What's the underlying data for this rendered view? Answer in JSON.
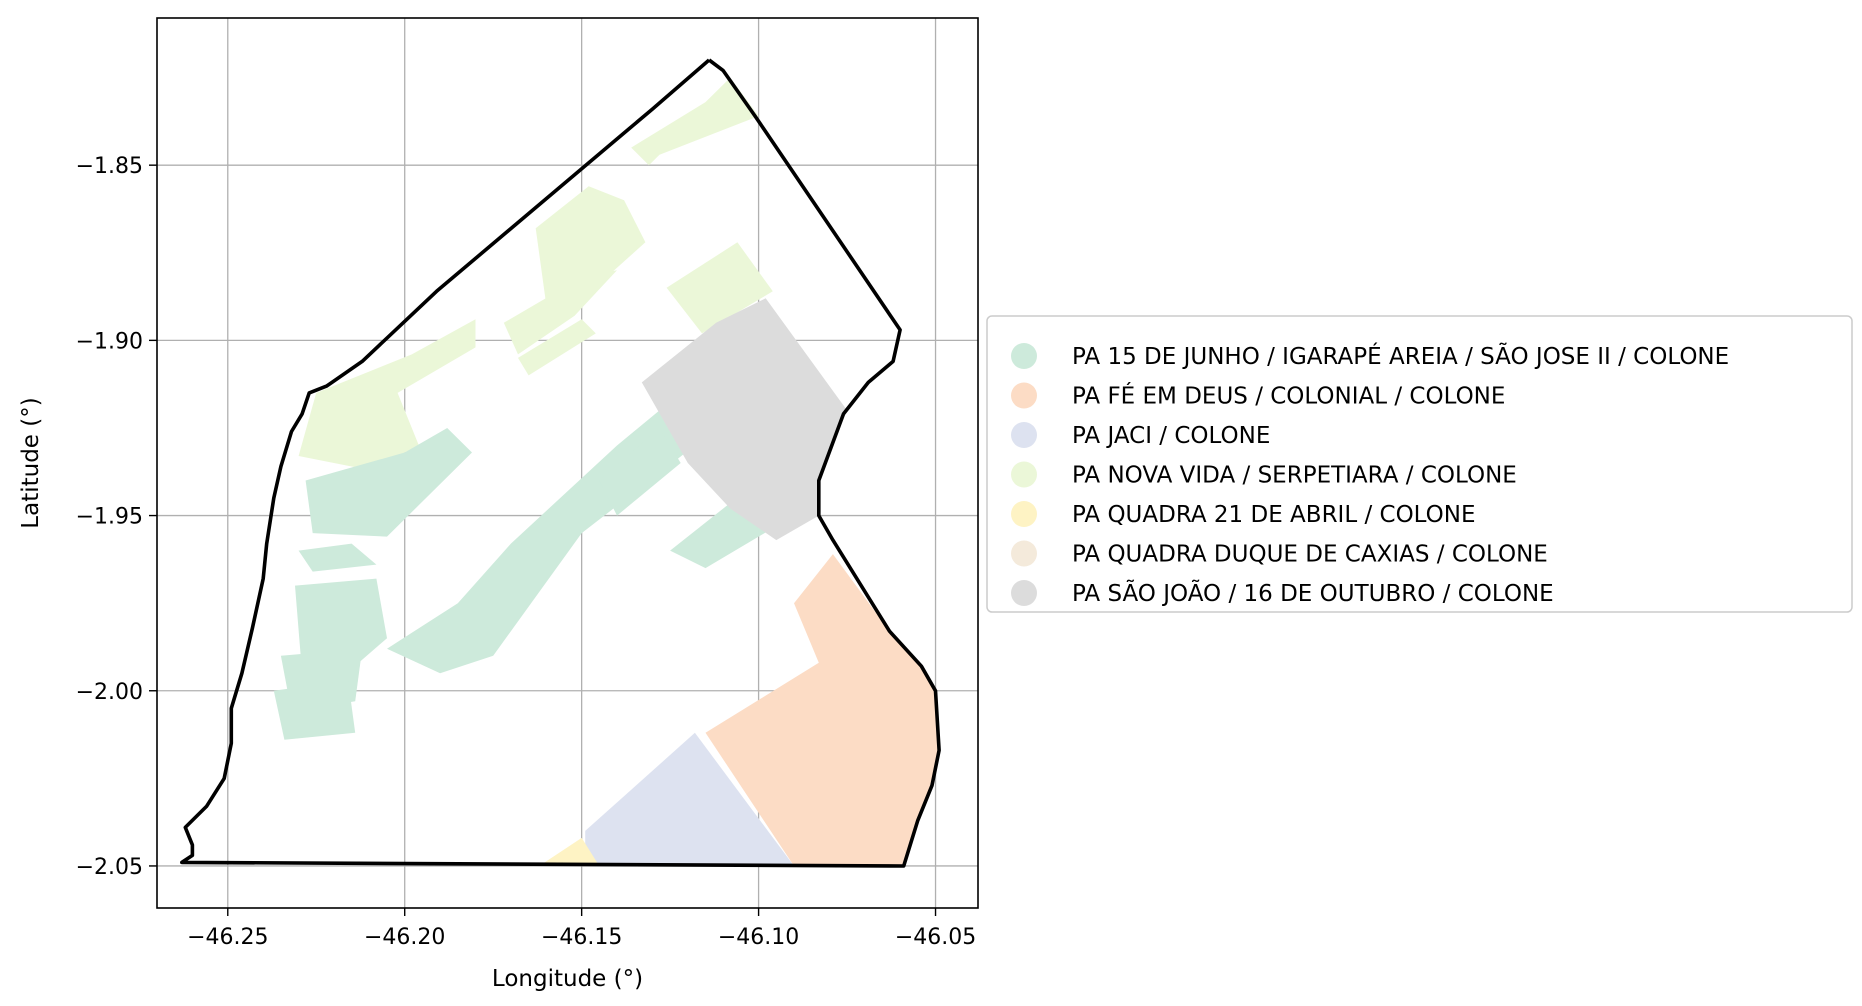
{
  "chart_data": {
    "type": "map",
    "xlabel": "Longitude (°)",
    "ylabel": "Latitude (°)",
    "xlim": [
      -46.27,
      -46.038
    ],
    "ylim": [
      -2.062,
      -1.808
    ],
    "xticks": [
      -46.25,
      -46.2,
      -46.15,
      -46.1,
      -46.05
    ],
    "yticks": [
      -1.85,
      -1.9,
      -1.95,
      -2.0,
      -2.05
    ],
    "xtick_labels": [
      "−46.25",
      "−46.20",
      "−46.15",
      "−46.10",
      "−46.05"
    ],
    "ytick_labels": [
      "−1.85",
      "−1.90",
      "−1.95",
      "−2.00",
      "−2.05"
    ],
    "grid": true,
    "legend_position": "right",
    "legend": [
      {
        "label": "PA 15 DE JUNHO / IGARAPÉ AREIA / SÃO JOSE II / COLONE",
        "color": "#cdeadb"
      },
      {
        "label": "PA FÉ EM DEUS / COLONIAL / COLONE",
        "color": "#fcdcc5"
      },
      {
        "label": "PA JACI / COLONE",
        "color": "#dde2f0"
      },
      {
        "label": "PA NOVA VIDA / SERPETIARA / COLONE",
        "color": "#ebf7d8"
      },
      {
        "label": "PA QUADRA 21 DE ABRIL / COLONE",
        "color": "#fef3c4"
      },
      {
        "label": "PA QUADRA DUQUE DE CAXIAS / COLONE",
        "color": "#f4eadb"
      },
      {
        "label": "PA SÃO JOÃO / 16 DE OUTUBRO / COLONE",
        "color": "#dcdcdc"
      }
    ],
    "boundary": [
      [
        -46.114,
        -1.82
      ],
      [
        -46.11,
        -1.823
      ],
      [
        -46.101,
        -1.836
      ],
      [
        -46.06,
        -1.897
      ],
      [
        -46.062,
        -1.906
      ],
      [
        -46.069,
        -1.912
      ],
      [
        -46.076,
        -1.921
      ],
      [
        -46.083,
        -1.94
      ],
      [
        -46.083,
        -1.95
      ],
      [
        -46.079,
        -1.957
      ],
      [
        -46.063,
        -1.983
      ],
      [
        -46.054,
        -1.993
      ],
      [
        -46.05,
        -2.0
      ],
      [
        -46.049,
        -2.017
      ],
      [
        -46.051,
        -2.027
      ],
      [
        -46.055,
        -2.037
      ],
      [
        -46.059,
        -2.05
      ],
      [
        -46.263,
        -2.049
      ],
      [
        -46.26,
        -2.047
      ],
      [
        -46.26,
        -2.044
      ],
      [
        -46.262,
        -2.039
      ],
      [
        -46.256,
        -2.033
      ],
      [
        -46.251,
        -2.025
      ],
      [
        -46.249,
        -2.015
      ],
      [
        -46.249,
        -2.005
      ],
      [
        -46.246,
        -1.995
      ],
      [
        -46.243,
        -1.982
      ],
      [
        -46.24,
        -1.968
      ],
      [
        -46.239,
        -1.958
      ],
      [
        -46.237,
        -1.945
      ],
      [
        -46.235,
        -1.936
      ],
      [
        -46.232,
        -1.926
      ],
      [
        -46.229,
        -1.921
      ],
      [
        -46.227,
        -1.915
      ],
      [
        -46.222,
        -1.913
      ],
      [
        -46.212,
        -1.906
      ],
      [
        -46.191,
        -1.886
      ],
      [
        -46.15,
        -1.851
      ],
      [
        -46.13,
        -1.834
      ],
      [
        -46.114,
        -1.82
      ]
    ],
    "regions": [
      {
        "color": "#ebf7d8",
        "points": [
          [
            -46.136,
            -1.845
          ],
          [
            -46.115,
            -1.832
          ],
          [
            -46.108,
            -1.825
          ],
          [
            -46.1,
            -1.836
          ],
          [
            -46.128,
            -1.847
          ],
          [
            -46.131,
            -1.85
          ]
        ]
      },
      {
        "color": "#ebf7d8",
        "points": [
          [
            -46.163,
            -1.868
          ],
          [
            -46.148,
            -1.856
          ],
          [
            -46.138,
            -1.86
          ],
          [
            -46.132,
            -1.872
          ],
          [
            -46.143,
            -1.882
          ],
          [
            -46.16,
            -1.89
          ]
        ]
      },
      {
        "color": "#ebf7d8",
        "points": [
          [
            -46.126,
            -1.885
          ],
          [
            -46.106,
            -1.872
          ],
          [
            -46.096,
            -1.886
          ],
          [
            -46.116,
            -1.898
          ]
        ]
      },
      {
        "color": "#ebf7d8",
        "points": [
          [
            -46.23,
            -1.933
          ],
          [
            -46.225,
            -1.915
          ],
          [
            -46.198,
            -1.904
          ],
          [
            -46.18,
            -1.894
          ],
          [
            -46.18,
            -1.902
          ],
          [
            -46.202,
            -1.915
          ],
          [
            -46.196,
            -1.93
          ],
          [
            -46.21,
            -1.937
          ]
        ]
      },
      {
        "color": "#ebf7d8",
        "points": [
          [
            -46.172,
            -1.895
          ],
          [
            -46.15,
            -1.882
          ],
          [
            -46.14,
            -1.88
          ],
          [
            -46.152,
            -1.893
          ],
          [
            -46.168,
            -1.904
          ]
        ]
      },
      {
        "color": "#ebf7d8",
        "points": [
          [
            -46.168,
            -1.905
          ],
          [
            -46.15,
            -1.894
          ],
          [
            -46.146,
            -1.898
          ],
          [
            -46.165,
            -1.91
          ]
        ]
      },
      {
        "color": "#cdeadb",
        "points": [
          [
            -46.228,
            -1.94
          ],
          [
            -46.2,
            -1.932
          ],
          [
            -46.188,
            -1.925
          ],
          [
            -46.181,
            -1.932
          ],
          [
            -46.205,
            -1.956
          ],
          [
            -46.226,
            -1.955
          ]
        ]
      },
      {
        "color": "#cdeadb",
        "points": [
          [
            -46.23,
            -1.96
          ],
          [
            -46.215,
            -1.958
          ],
          [
            -46.208,
            -1.964
          ],
          [
            -46.226,
            -1.966
          ]
        ]
      },
      {
        "color": "#cdeadb",
        "points": [
          [
            -46.231,
            -1.97
          ],
          [
            -46.208,
            -1.968
          ],
          [
            -46.205,
            -1.985
          ],
          [
            -46.213,
            -1.992
          ],
          [
            -46.229,
            -1.995
          ]
        ]
      },
      {
        "color": "#cdeadb",
        "points": [
          [
            -46.235,
            -1.99
          ],
          [
            -46.212,
            -1.988
          ],
          [
            -46.214,
            -2.003
          ],
          [
            -46.232,
            -2.006
          ]
        ]
      },
      {
        "color": "#cdeadb",
        "points": [
          [
            -46.237,
            -2.0
          ],
          [
            -46.216,
            -1.997
          ],
          [
            -46.214,
            -2.012
          ],
          [
            -46.234,
            -2.014
          ]
        ]
      },
      {
        "color": "#cdeadb",
        "points": [
          [
            -46.205,
            -1.988
          ],
          [
            -46.185,
            -1.975
          ],
          [
            -46.17,
            -1.958
          ],
          [
            -46.14,
            -1.93
          ],
          [
            -46.128,
            -1.92
          ],
          [
            -46.118,
            -1.93
          ],
          [
            -46.15,
            -1.955
          ],
          [
            -46.175,
            -1.99
          ],
          [
            -46.19,
            -1.995
          ]
        ]
      },
      {
        "color": "#cdeadb",
        "points": [
          [
            -46.145,
            -1.94
          ],
          [
            -46.128,
            -1.925
          ],
          [
            -46.122,
            -1.935
          ],
          [
            -46.14,
            -1.95
          ]
        ]
      },
      {
        "color": "#cdeadb",
        "points": [
          [
            -46.125,
            -1.96
          ],
          [
            -46.1,
            -1.94
          ],
          [
            -46.09,
            -1.95
          ],
          [
            -46.115,
            -1.965
          ]
        ]
      },
      {
        "color": "#dcdcdc",
        "points": [
          [
            -46.133,
            -1.912
          ],
          [
            -46.112,
            -1.895
          ],
          [
            -46.098,
            -1.888
          ],
          [
            -46.075,
            -1.92
          ],
          [
            -46.083,
            -1.94
          ],
          [
            -46.083,
            -1.95
          ],
          [
            -46.095,
            -1.957
          ],
          [
            -46.108,
            -1.948
          ],
          [
            -46.12,
            -1.935
          ]
        ]
      },
      {
        "color": "#fcdcc5",
        "points": [
          [
            -46.09,
            -1.975
          ],
          [
            -46.079,
            -1.961
          ],
          [
            -46.063,
            -1.983
          ],
          [
            -46.054,
            -1.993
          ],
          [
            -46.05,
            -2.0
          ],
          [
            -46.049,
            -2.017
          ],
          [
            -46.051,
            -2.027
          ],
          [
            -46.055,
            -2.037
          ],
          [
            -46.059,
            -2.05
          ],
          [
            -46.09,
            -2.05
          ],
          [
            -46.115,
            -2.012
          ],
          [
            -46.083,
            -1.992
          ]
        ]
      },
      {
        "color": "#dde2f0",
        "points": [
          [
            -46.149,
            -2.04
          ],
          [
            -46.118,
            -2.012
          ],
          [
            -46.09,
            -2.05
          ],
          [
            -46.149,
            -2.05
          ]
        ]
      },
      {
        "color": "#fef3c4",
        "points": [
          [
            -46.162,
            -2.05
          ],
          [
            -46.15,
            -2.042
          ],
          [
            -46.145,
            -2.05
          ]
        ]
      }
    ]
  }
}
